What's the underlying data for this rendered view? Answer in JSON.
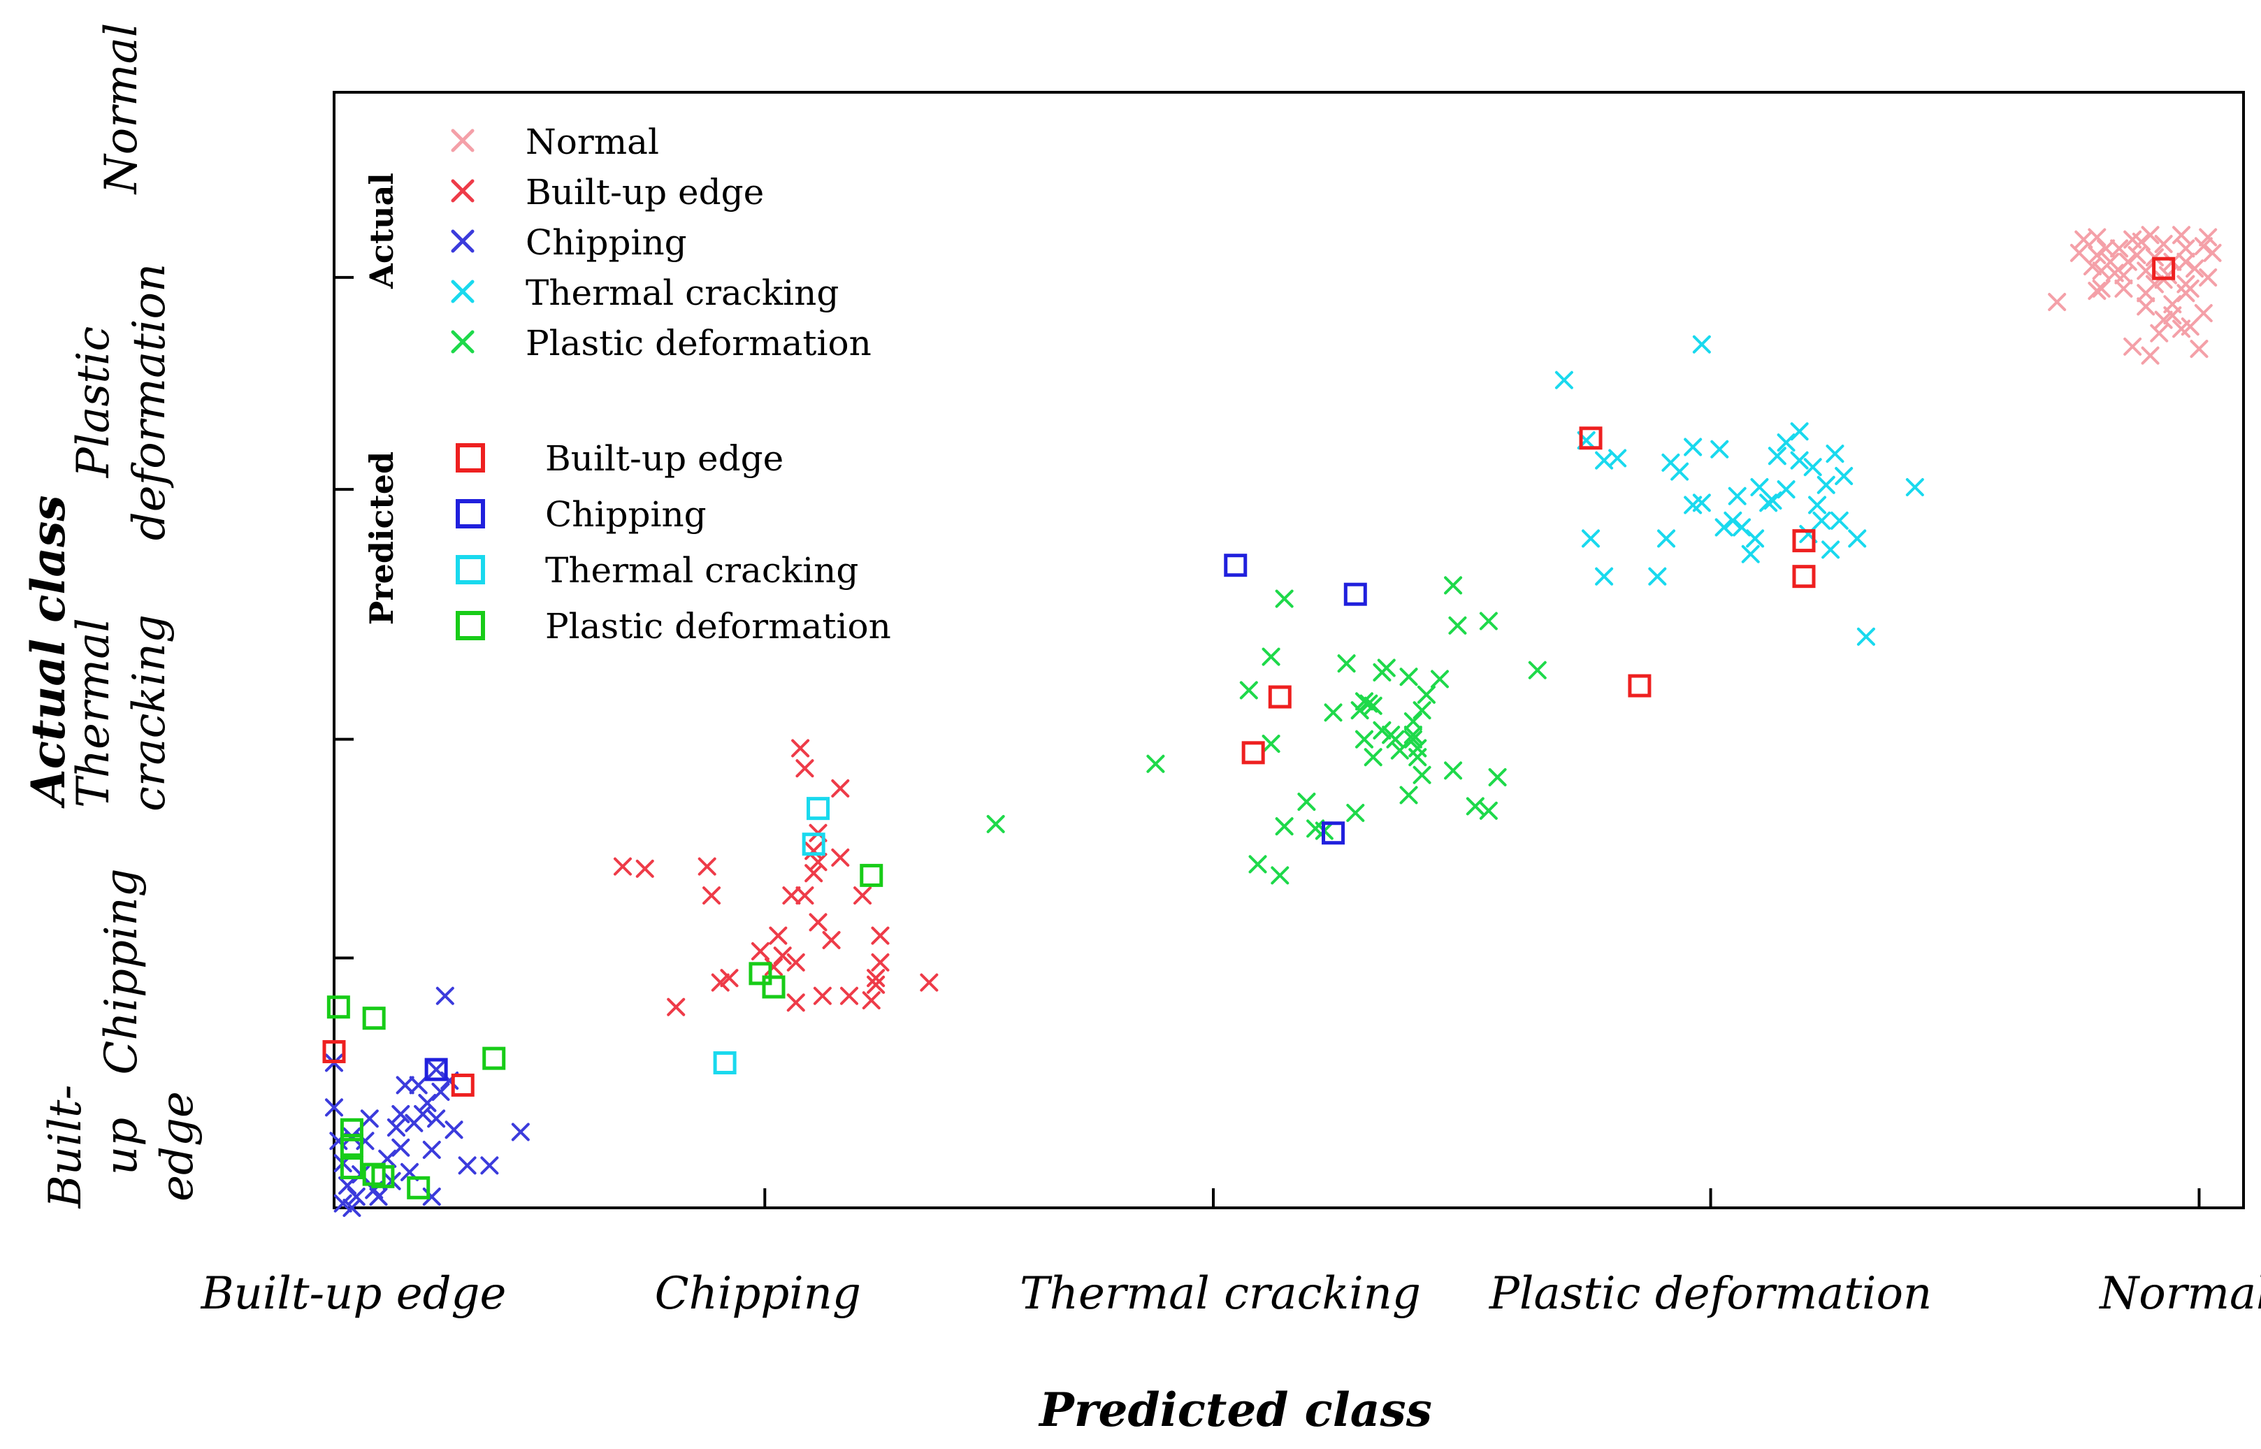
{
  "chart_data": {
    "type": "scatter",
    "title": "",
    "xlabel": "Predicted class",
    "ylabel": "Actual class",
    "x_ticks": [
      "Built-up edge",
      "Chipping",
      "Thermal cracking",
      "Plastic deformation",
      "Normal"
    ],
    "y_ticks": [
      "Built-\nup\nedge",
      "Chipping",
      "Thermal\ncracking",
      "Plastic\ndeformation",
      "Normal"
    ],
    "grid": false,
    "legend": {
      "placement": "top-left",
      "actual_title": "Actual",
      "predicted_title": "Predicted",
      "actual_entries": [
        {
          "label": "Normal",
          "color": "#f4a0a8",
          "marker": "x"
        },
        {
          "label": "Built-up edge",
          "color": "#ee3b48",
          "marker": "x"
        },
        {
          "label": "Chipping",
          "color": "#3b3bdc",
          "marker": "x"
        },
        {
          "label": "Thermal cracking",
          "color": "#19d9ee",
          "marker": "x"
        },
        {
          "label": "Plastic deformation",
          "color": "#1ed94a",
          "marker": "x"
        }
      ],
      "predicted_entries": [
        {
          "label": "Built-up edge",
          "color": "#ee2020",
          "marker": "square"
        },
        {
          "label": "Chipping",
          "color": "#2020dd",
          "marker": "square"
        },
        {
          "label": "Thermal cracking",
          "color": "#19d9ee",
          "marker": "square"
        },
        {
          "label": "Plastic deformation",
          "color": "#18cc18",
          "marker": "square"
        }
      ]
    },
    "xlim": [
      0,
      4.3
    ],
    "ylim": [
      0,
      5.0
    ],
    "x_tick_positions": [
      0,
      0.97,
      1.98,
      3.1,
      4.2
    ],
    "y_tick_positions": [
      0,
      1.12,
      2.1,
      3.22,
      4.17
    ],
    "series": [
      {
        "name": "Normal",
        "kind": "actual",
        "color": "#f4a0a8",
        "marker": "x",
        "points": [
          [
            3.97,
            4.35
          ],
          [
            4.02,
            4.3
          ],
          [
            4.04,
            4.24
          ],
          [
            3.98,
            4.2
          ],
          [
            4.03,
            4.18
          ],
          [
            4.07,
            4.33
          ],
          [
            4.12,
            4.32
          ],
          [
            4.1,
            4.26
          ],
          [
            4.08,
            4.2
          ],
          [
            4.14,
            4.24
          ],
          [
            4.17,
            4.3
          ],
          [
            4.17,
            4.24
          ],
          [
            4.19,
            4.21
          ],
          [
            4.12,
            4.16
          ],
          [
            4.17,
            4.1
          ],
          [
            4.08,
            4.04
          ],
          [
            4.12,
            3.98
          ],
          [
            4.18,
            4.12
          ],
          [
            4.21,
            4.01
          ],
          [
            4.14,
            4.05
          ],
          [
            4.16,
            3.94
          ],
          [
            3.98,
            4.12
          ],
          [
            4.09,
            3.82
          ],
          [
            3.97,
            4.27
          ],
          [
            4.22,
            4.17
          ],
          [
            4.23,
            4.28
          ],
          [
            4.22,
            4.35
          ],
          [
            4.16,
            4.36
          ],
          [
            4.09,
            4.36
          ],
          [
            3.94,
            4.34
          ],
          [
            3.96,
            4.22
          ],
          [
            3.93,
            4.28
          ],
          [
            4.06,
            4.27
          ],
          [
            4.21,
            4.31
          ],
          [
            3.97,
            4.11
          ],
          [
            4.2,
            3.85
          ],
          [
            4.05,
            3.86
          ],
          [
            4.11,
            3.92
          ],
          [
            4.14,
            4.0
          ],
          [
            3.88,
            4.06
          ],
          [
            4.08,
            4.1
          ],
          [
            4.18,
            3.95
          ],
          [
            4.03,
            4.12
          ],
          [
            4.13,
            4.18
          ],
          [
            3.99,
            4.3
          ],
          [
            4.05,
            4.34
          ],
          [
            4.01,
            4.19
          ],
          [
            4.0,
            4.24
          ],
          [
            4.1,
            4.14
          ],
          [
            4.17,
            4.14
          ]
        ]
      },
      {
        "name": "Built-up edge",
        "kind": "actual",
        "color": "#ee3b48",
        "marker": "x",
        "points": [
          [
            0.65,
            1.53
          ],
          [
            0.7,
            1.52
          ],
          [
            0.84,
            1.53
          ],
          [
            0.85,
            1.4
          ],
          [
            0.87,
            1.01
          ],
          [
            0.77,
            0.9
          ],
          [
            0.89,
            1.03
          ],
          [
            0.96,
            1.15
          ],
          [
            0.99,
            1.08
          ],
          [
            1.0,
            1.22
          ],
          [
            1.01,
            1.13
          ],
          [
            1.03,
            1.4
          ],
          [
            1.04,
            1.1
          ],
          [
            1.05,
            2.06
          ],
          [
            1.06,
            1.97
          ],
          [
            1.06,
            1.4
          ],
          [
            1.08,
            1.5
          ],
          [
            1.08,
            1.6
          ],
          [
            1.09,
            1.68
          ],
          [
            1.09,
            1.55
          ],
          [
            1.09,
            1.28
          ],
          [
            1.1,
            0.95
          ],
          [
            1.12,
            1.2
          ],
          [
            1.14,
            1.57
          ],
          [
            1.14,
            1.88
          ],
          [
            1.16,
            0.95
          ],
          [
            1.19,
            1.4
          ],
          [
            1.21,
            0.93
          ],
          [
            1.22,
            1.0
          ],
          [
            1.22,
            1.03
          ],
          [
            1.23,
            1.22
          ],
          [
            1.23,
            1.1
          ],
          [
            1.34,
            1.01
          ],
          [
            1.04,
            0.92
          ]
        ]
      },
      {
        "name": "Chipping",
        "kind": "actual",
        "color": "#3b3bdc",
        "marker": "x",
        "points": [
          [
            0.0,
            0.45
          ],
          [
            0.01,
            0.3
          ],
          [
            0.02,
            0.2
          ],
          [
            0.03,
            0.1
          ],
          [
            0.02,
            0.02
          ],
          [
            0.05,
            0.05
          ],
          [
            0.07,
            0.3
          ],
          [
            0.08,
            0.4
          ],
          [
            0.04,
            0.0
          ],
          [
            0.1,
            0.05
          ],
          [
            0.13,
            0.12
          ],
          [
            0.15,
            0.42
          ],
          [
            0.14,
            0.36
          ],
          [
            0.15,
            0.27
          ],
          [
            0.17,
            0.16
          ],
          [
            0.18,
            0.38
          ],
          [
            0.19,
            0.55
          ],
          [
            0.21,
            0.47
          ],
          [
            0.22,
            0.26
          ],
          [
            0.22,
            0.05
          ],
          [
            0.23,
            0.62
          ],
          [
            0.24,
            0.52
          ],
          [
            0.25,
            0.95
          ],
          [
            0.26,
            0.57
          ],
          [
            0.27,
            0.35
          ],
          [
            0.3,
            0.19
          ],
          [
            0.35,
            0.19
          ],
          [
            0.42,
            0.34
          ],
          [
            0.04,
            0.32
          ],
          [
            0.06,
            0.15
          ],
          [
            0.09,
            0.08
          ],
          [
            0.12,
            0.22
          ],
          [
            0.0,
            0.65
          ],
          [
            0.16,
            0.55
          ],
          [
            0.2,
            0.42
          ],
          [
            0.23,
            0.4
          ]
        ]
      },
      {
        "name": "Thermal cracking",
        "kind": "actual",
        "color": "#19d9ee",
        "marker": "x",
        "points": [
          [
            2.77,
            3.71
          ],
          [
            2.82,
            3.44
          ],
          [
            2.86,
            3.35
          ],
          [
            2.89,
            3.36
          ],
          [
            2.83,
            3.0
          ],
          [
            2.86,
            2.83
          ],
          [
            2.98,
            2.83
          ],
          [
            3.0,
            3.0
          ],
          [
            3.01,
            3.34
          ],
          [
            3.03,
            3.3
          ],
          [
            3.06,
            3.41
          ],
          [
            3.08,
            3.16
          ],
          [
            3.13,
            3.05
          ],
          [
            3.17,
            3.05
          ],
          [
            3.15,
            3.08
          ],
          [
            3.19,
            2.93
          ],
          [
            3.21,
            3.23
          ],
          [
            3.25,
            3.37
          ],
          [
            3.27,
            3.43
          ],
          [
            3.3,
            3.35
          ],
          [
            3.32,
            3.02
          ],
          [
            3.34,
            3.15
          ],
          [
            3.35,
            3.08
          ],
          [
            3.38,
            3.38
          ],
          [
            3.4,
            3.28
          ],
          [
            3.43,
            3.0
          ],
          [
            3.45,
            2.56
          ],
          [
            3.39,
            3.08
          ],
          [
            3.24,
            3.17
          ],
          [
            3.2,
            3.0
          ],
          [
            3.08,
            3.87
          ],
          [
            3.12,
            3.4
          ],
          [
            3.27,
            3.22
          ],
          [
            3.16,
            3.19
          ],
          [
            3.23,
            3.16
          ],
          [
            3.37,
            2.95
          ],
          [
            3.56,
            3.23
          ],
          [
            3.33,
            3.32
          ],
          [
            3.36,
            3.24
          ],
          [
            3.06,
            3.15
          ],
          [
            3.3,
            3.48
          ]
        ]
      },
      {
        "name": "Plastic deformation",
        "kind": "actual",
        "color": "#1ed94a",
        "marker": "x",
        "points": [
          [
            1.49,
            1.72
          ],
          [
            1.85,
            1.99
          ],
          [
            2.08,
            1.54
          ],
          [
            2.13,
            1.49
          ],
          [
            2.11,
            2.08
          ],
          [
            2.19,
            1.82
          ],
          [
            2.21,
            1.7
          ],
          [
            2.23,
            1.69
          ],
          [
            2.25,
            2.22
          ],
          [
            2.28,
            2.44
          ],
          [
            2.31,
            2.23
          ],
          [
            2.32,
            2.27
          ],
          [
            2.32,
            2.1
          ],
          [
            2.34,
            2.25
          ],
          [
            2.36,
            2.4
          ],
          [
            2.36,
            2.14
          ],
          [
            2.38,
            2.12
          ],
          [
            2.39,
            2.1
          ],
          [
            2.4,
            2.05
          ],
          [
            2.42,
            2.38
          ],
          [
            2.43,
            2.18
          ],
          [
            2.44,
            2.06
          ],
          [
            2.45,
            2.23
          ],
          [
            2.45,
            1.94
          ],
          [
            2.43,
            2.1
          ],
          [
            2.42,
            1.85
          ],
          [
            2.44,
            2.02
          ],
          [
            2.43,
            2.12
          ],
          [
            2.14,
            2.73
          ],
          [
            2.11,
            2.47
          ],
          [
            2.14,
            1.71
          ],
          [
            2.49,
            2.37
          ],
          [
            2.52,
            2.79
          ],
          [
            2.52,
            1.96
          ],
          [
            2.3,
            1.77
          ],
          [
            2.53,
            2.61
          ],
          [
            2.57,
            1.8
          ],
          [
            2.6,
            1.78
          ],
          [
            2.6,
            2.63
          ],
          [
            2.62,
            1.93
          ],
          [
            2.71,
            2.41
          ],
          [
            2.06,
            2.32
          ],
          [
            2.33,
            2.26
          ],
          [
            2.37,
            2.42
          ],
          [
            2.46,
            2.3
          ],
          [
            2.34,
            2.02
          ]
        ]
      },
      {
        "name": "Built-up edge",
        "kind": "predicted",
        "color": "#ee2020",
        "marker": "square",
        "points": [
          [
            0.0,
            0.7
          ],
          [
            0.29,
            0.55
          ],
          [
            2.07,
            2.04
          ],
          [
            2.13,
            2.29
          ],
          [
            2.83,
            3.45
          ],
          [
            2.94,
            2.34
          ],
          [
            3.31,
            2.99
          ],
          [
            3.31,
            2.83
          ],
          [
            4.12,
            4.21
          ]
        ]
      },
      {
        "name": "Chipping",
        "kind": "predicted",
        "color": "#2020dd",
        "marker": "square",
        "points": [
          [
            0.23,
            0.62
          ],
          [
            2.03,
            2.88
          ],
          [
            2.25,
            1.68
          ],
          [
            2.3,
            2.75
          ]
        ]
      },
      {
        "name": "Thermal cracking",
        "kind": "predicted",
        "color": "#19d9ee",
        "marker": "square",
        "points": [
          [
            0.88,
            0.65
          ],
          [
            1.08,
            1.63
          ],
          [
            1.09,
            1.79
          ]
        ]
      },
      {
        "name": "Plastic deformation",
        "kind": "predicted",
        "color": "#18cc18",
        "marker": "square",
        "points": [
          [
            0.01,
            0.9
          ],
          [
            0.09,
            0.85
          ],
          [
            0.36,
            0.67
          ],
          [
            0.04,
            0.35
          ],
          [
            0.04,
            0.18
          ],
          [
            0.11,
            0.14
          ],
          [
            0.19,
            0.09
          ],
          [
            0.96,
            1.05
          ],
          [
            0.99,
            0.99
          ],
          [
            1.21,
            1.49
          ],
          [
            0.09,
            0.15
          ],
          [
            0.04,
            0.28
          ]
        ]
      }
    ]
  }
}
